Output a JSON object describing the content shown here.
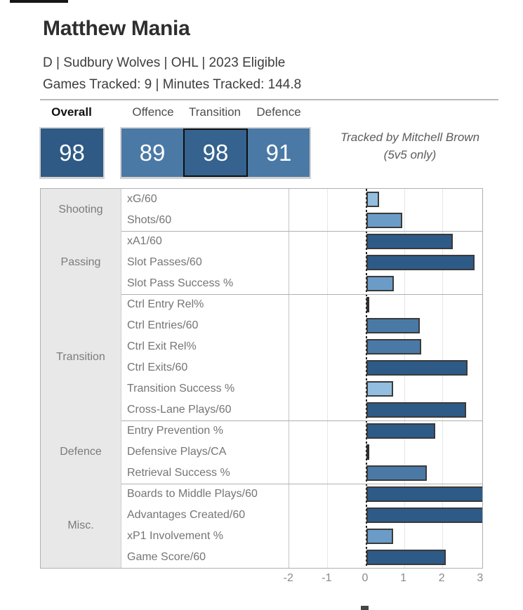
{
  "header": {
    "title": "Matthew Mania",
    "subtitle": "D | Sudbury Wolves | OHL | 2023 Eligible",
    "tracking": "Games Tracked: 9 | Minutes Tracked: 144.8"
  },
  "tabs": [
    {
      "label": "Overall",
      "active": true
    },
    {
      "label": "Offence",
      "active": false
    },
    {
      "label": "Transition",
      "active": false
    },
    {
      "label": "Defence",
      "active": false
    }
  ],
  "scores": {
    "overall": {
      "label": "Overall",
      "value": 98,
      "color": "#2e5a85"
    },
    "offence": {
      "label": "Offence",
      "value": 89,
      "color": "#4a79a5"
    },
    "transition": {
      "label": "Transition",
      "value": 98,
      "color": "#35628e",
      "highlighted": true
    },
    "defence": {
      "label": "Defence",
      "value": 91,
      "color": "#4a79a5"
    }
  },
  "credit": {
    "line1": "Tracked by Mitchell Brown",
    "line2": "(5v5 only)"
  },
  "chart_data": {
    "type": "bar",
    "orientation": "horizontal",
    "x_ticks": [
      -2,
      -1,
      0,
      1,
      2,
      3
    ],
    "xlim": [
      -2,
      3.05
    ],
    "grid": true,
    "palette": {
      "dark": "#2e5a87",
      "steel": "#4b79a6",
      "medium": "#6b9cc7",
      "light": "#93bedf",
      "sliver": "#2f2f2f"
    },
    "groups": [
      {
        "category": "Shooting",
        "metrics": [
          {
            "label": "xG/60",
            "value": 0.33,
            "tone": "light"
          },
          {
            "label": "Shots/60",
            "value": 0.93,
            "tone": "medium"
          }
        ]
      },
      {
        "category": "Passing",
        "metrics": [
          {
            "label": "xA1/60",
            "value": 2.26,
            "tone": "dark"
          },
          {
            "label": "Slot Passes/60",
            "value": 2.82,
            "tone": "dark"
          },
          {
            "label": "Slot Pass Success %",
            "value": 0.72,
            "tone": "medium"
          }
        ]
      },
      {
        "category": "Transition",
        "metrics": [
          {
            "label": "Ctrl Entry Rel%",
            "value": 0.02,
            "tone": "sliver"
          },
          {
            "label": "Ctrl Entries/60",
            "value": 1.39,
            "tone": "steel"
          },
          {
            "label": "Ctrl Exit Rel%",
            "value": 1.43,
            "tone": "steel"
          },
          {
            "label": "Ctrl Exits/60",
            "value": 2.64,
            "tone": "dark"
          },
          {
            "label": "Transition Success %",
            "value": 0.7,
            "tone": "light"
          },
          {
            "label": "Cross-Lane Plays/60",
            "value": 2.6,
            "tone": "dark"
          }
        ]
      },
      {
        "category": "Defence",
        "metrics": [
          {
            "label": "Entry Prevention %",
            "value": 1.79,
            "tone": "dark"
          },
          {
            "label": "Defensive Plays/CA",
            "value": 0.02,
            "tone": "sliver"
          },
          {
            "label": "Retrieval Success %",
            "value": 1.57,
            "tone": "steel"
          }
        ]
      },
      {
        "category": "Misc.",
        "metrics": [
          {
            "label": "Boards to Middle Plays/60",
            "value": 3.05,
            "tone": "dark"
          },
          {
            "label": "Advantages Created/60",
            "value": 3.05,
            "tone": "dark"
          },
          {
            "label": "xP1 Involvement %",
            "value": 0.7,
            "tone": "medium"
          },
          {
            "label": "Game Score/60",
            "value": 2.07,
            "tone": "dark"
          }
        ]
      }
    ]
  }
}
